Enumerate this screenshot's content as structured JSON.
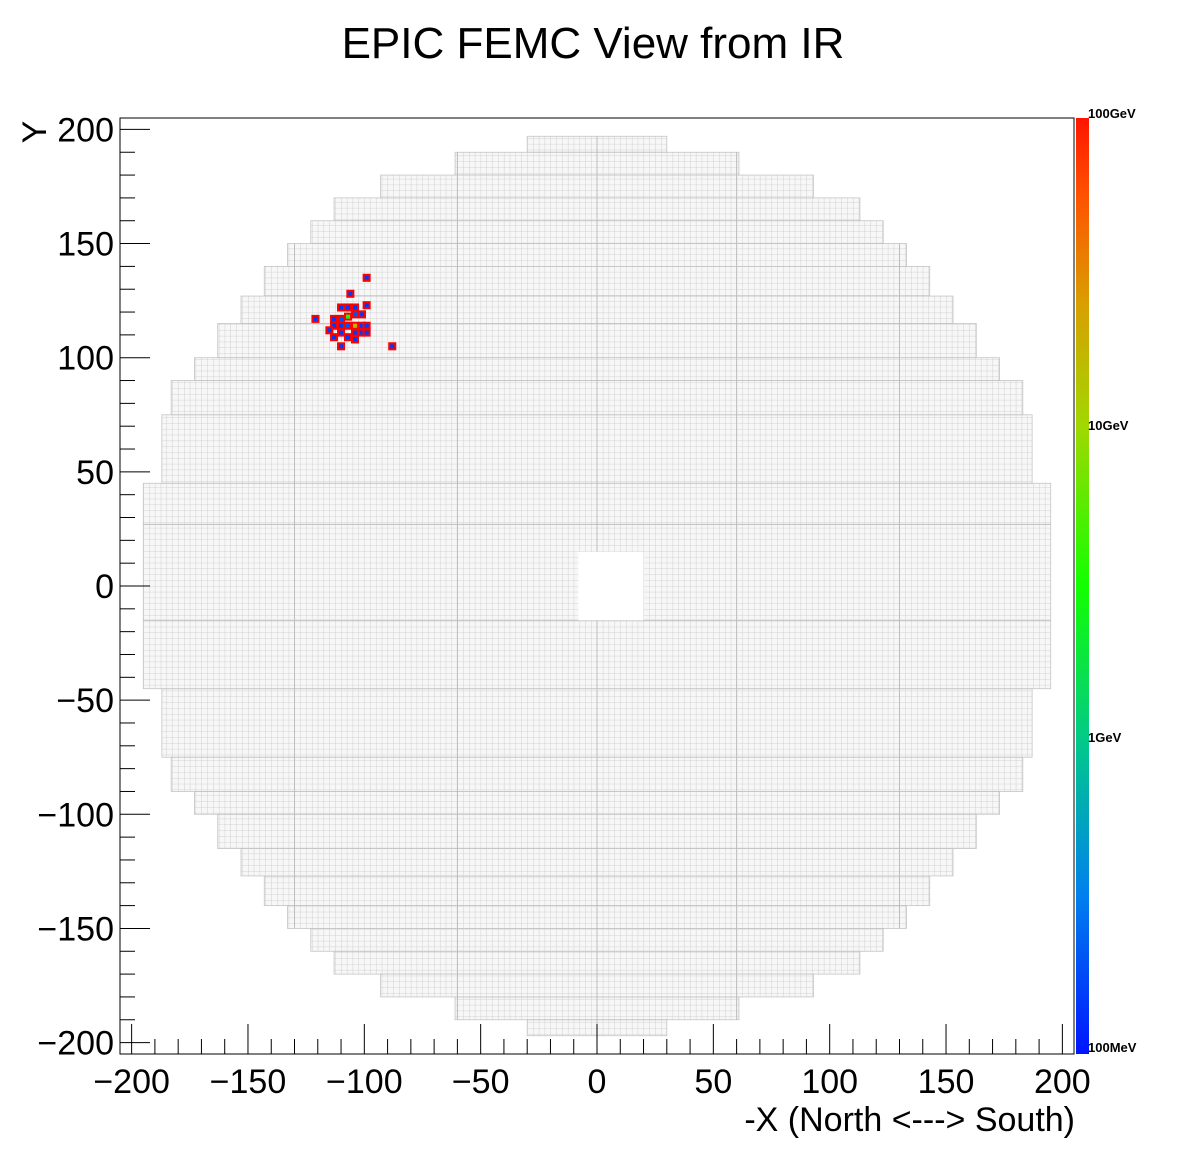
{
  "chart_data": {
    "type": "heatmap",
    "title": "EPIC FEMC View from IR",
    "xlabel": "-X (North <---> South)",
    "ylabel": "Y",
    "xlim": [
      -205,
      205
    ],
    "ylim": [
      -205,
      205
    ],
    "x_ticks": [
      -200,
      -150,
      -100,
      -50,
      0,
      50,
      100,
      150,
      200
    ],
    "y_ticks": [
      200,
      150,
      100,
      50,
      0,
      -50,
      -100,
      -150,
      -200
    ],
    "x_tick_labels": [
      "−200",
      "−150",
      "−100",
      "−50",
      "0",
      "50",
      "100",
      "150",
      "200"
    ],
    "y_tick_labels": [
      "200",
      "150",
      "100",
      "50",
      "0",
      "−50",
      "−100",
      "−150",
      "−200"
    ],
    "grid": false,
    "legend": "none",
    "detector": {
      "cell_size": 2.5,
      "beam_hole": {
        "x": [
          -8,
          20
        ],
        "y": [
          -15,
          15
        ]
      },
      "rings": [
        {
          "y": [
            190,
            197
          ],
          "x": [
            -30,
            30
          ]
        },
        {
          "y": [
            180,
            190
          ],
          "x": [
            -61,
            61
          ]
        },
        {
          "y": [
            170,
            180
          ],
          "x": [
            -93,
            93
          ]
        },
        {
          "y": [
            160,
            170
          ],
          "x": [
            -113,
            113
          ]
        },
        {
          "y": [
            150,
            160
          ],
          "x": [
            -123,
            123
          ]
        },
        {
          "y": [
            140,
            150
          ],
          "x": [
            -133,
            133
          ]
        },
        {
          "y": [
            127,
            140
          ],
          "x": [
            -143,
            143
          ]
        },
        {
          "y": [
            115,
            127
          ],
          "x": [
            -153,
            153
          ]
        },
        {
          "y": [
            100,
            115
          ],
          "x": [
            -163,
            163
          ]
        },
        {
          "y": [
            90,
            100
          ],
          "x": [
            -173,
            173
          ]
        },
        {
          "y": [
            75,
            90
          ],
          "x": [
            -183,
            183
          ]
        },
        {
          "y": [
            45,
            75
          ],
          "x": [
            -187,
            187
          ]
        },
        {
          "y": [
            -45,
            45
          ],
          "x": [
            -195,
            195
          ]
        },
        {
          "y": [
            -75,
            -45
          ],
          "x": [
            -187,
            187
          ]
        },
        {
          "y": [
            -90,
            -75
          ],
          "x": [
            -183,
            183
          ]
        },
        {
          "y": [
            -100,
            -90
          ],
          "x": [
            -173,
            173
          ]
        },
        {
          "y": [
            -115,
            -100
          ],
          "x": [
            -163,
            163
          ]
        },
        {
          "y": [
            -127,
            -115
          ],
          "x": [
            -153,
            153
          ]
        },
        {
          "y": [
            -140,
            -127
          ],
          "x": [
            -143,
            143
          ]
        },
        {
          "y": [
            -150,
            -140
          ],
          "x": [
            -133,
            133
          ]
        },
        {
          "y": [
            -160,
            -150
          ],
          "x": [
            -123,
            123
          ]
        },
        {
          "y": [
            -170,
            -160
          ],
          "x": [
            -113,
            113
          ]
        },
        {
          "y": [
            -180,
            -170
          ],
          "x": [
            -93,
            93
          ]
        },
        {
          "y": [
            -190,
            -180
          ],
          "x": [
            -61,
            61
          ]
        },
        {
          "y": [
            -197,
            -190
          ],
          "x": [
            -30,
            30
          ]
        }
      ]
    },
    "colorbar": {
      "scale": "log",
      "range_gev": [
        0.1,
        100
      ],
      "labels": [
        {
          "value": 100,
          "text": "100GeV"
        },
        {
          "value": 10,
          "text": "10GeV"
        },
        {
          "value": 1,
          "text": "1GeV"
        },
        {
          "value": 0.1,
          "text": "100MeV"
        }
      ]
    },
    "hits": [
      {
        "x": -99,
        "y": 135,
        "e": 0.15
      },
      {
        "x": -106,
        "y": 128,
        "e": 0.15
      },
      {
        "x": -99,
        "y": 123,
        "e": 0.15
      },
      {
        "x": -110,
        "y": 122,
        "e": 0.15
      },
      {
        "x": -107,
        "y": 122,
        "e": 0.15
      },
      {
        "x": -104,
        "y": 122,
        "e": 0.15
      },
      {
        "x": -121,
        "y": 117,
        "e": 0.15
      },
      {
        "x": -113,
        "y": 117,
        "e": 0.15
      },
      {
        "x": -110,
        "y": 117,
        "e": 0.2
      },
      {
        "x": -107,
        "y": 118,
        "e": 3
      },
      {
        "x": -104,
        "y": 119,
        "e": 0.2
      },
      {
        "x": -101,
        "y": 119,
        "e": 0.15
      },
      {
        "x": -113,
        "y": 114,
        "e": 0.15
      },
      {
        "x": -110,
        "y": 114,
        "e": 0.15
      },
      {
        "x": -107,
        "y": 114,
        "e": 0.2
      },
      {
        "x": -104,
        "y": 114,
        "e": 20
      },
      {
        "x": -101,
        "y": 114,
        "e": 0.15
      },
      {
        "x": -99,
        "y": 114,
        "e": 0.15
      },
      {
        "x": -115,
        "y": 112,
        "e": 0.15
      },
      {
        "x": -110,
        "y": 111,
        "e": 0.15
      },
      {
        "x": -104,
        "y": 111,
        "e": 0.15
      },
      {
        "x": -101,
        "y": 111,
        "e": 0.15
      },
      {
        "x": -99,
        "y": 111,
        "e": 0.15
      },
      {
        "x": -113,
        "y": 109,
        "e": 0.15
      },
      {
        "x": -107,
        "y": 109,
        "e": 0.15
      },
      {
        "x": -104,
        "y": 108,
        "e": 0.15
      },
      {
        "x": -110,
        "y": 105,
        "e": 0.15
      },
      {
        "x": -88,
        "y": 105,
        "e": 0.15
      }
    ]
  }
}
